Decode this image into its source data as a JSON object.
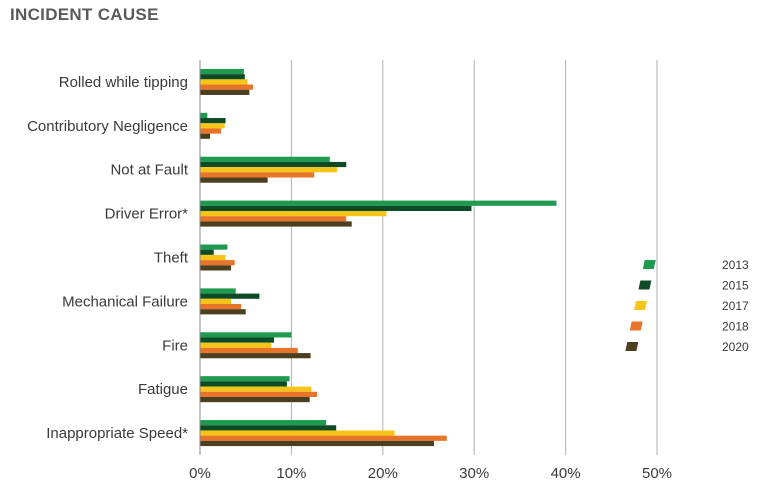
{
  "chart_data": {
    "type": "bar",
    "orientation": "horizontal",
    "title": "INCIDENT CAUSE",
    "categories": [
      "Rolled while tipping",
      "Contributory Negligence",
      "Not at Fault",
      "Driver Error*",
      "Theft",
      "Mechanical Failure",
      "Fire",
      "Fatigue",
      "Inappropriate Speed*"
    ],
    "series": [
      {
        "name": "2013",
        "color": "#1f9a4f",
        "values": [
          4.8,
          0.8,
          14.2,
          39.0,
          3.0,
          3.9,
          10.0,
          9.8,
          13.8
        ]
      },
      {
        "name": "2015",
        "color": "#0d4a26",
        "values": [
          4.9,
          2.8,
          16.0,
          29.7,
          1.5,
          6.5,
          8.1,
          9.5,
          14.9
        ]
      },
      {
        "name": "2017",
        "color": "#f7c518",
        "values": [
          5.2,
          2.7,
          15.0,
          20.4,
          2.8,
          3.4,
          7.8,
          12.2,
          21.3
        ]
      },
      {
        "name": "2018",
        "color": "#e8742a",
        "values": [
          5.8,
          2.3,
          12.5,
          16.0,
          3.8,
          4.5,
          10.7,
          12.8,
          27.0
        ]
      },
      {
        "name": "2020",
        "color": "#4a4020",
        "values": [
          5.4,
          1.1,
          7.4,
          16.6,
          3.4,
          5.0,
          12.1,
          12.0,
          25.6
        ]
      }
    ],
    "xlim": [
      0,
      50
    ],
    "xticks": [
      "0%",
      "10%",
      "20%",
      "30%",
      "40%",
      "50%"
    ],
    "grid": true,
    "legend_position": "right"
  }
}
